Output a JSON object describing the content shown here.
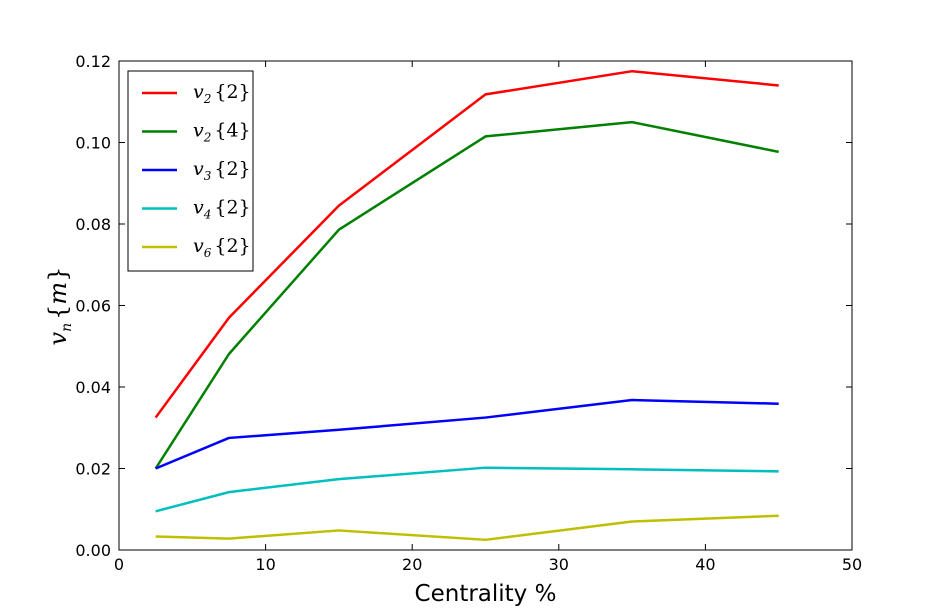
{
  "chart_data": {
    "type": "line",
    "title": "",
    "xlabel": "Centrality %",
    "ylabel": "v_n{m}",
    "xlim": [
      0,
      50
    ],
    "ylim": [
      0.0,
      0.12
    ],
    "xticks": [
      0,
      10,
      20,
      30,
      40,
      50
    ],
    "xtick_labels": [
      "0",
      "10",
      "20",
      "30",
      "40",
      "50"
    ],
    "yticks": [
      0.0,
      0.02,
      0.04,
      0.06,
      0.08,
      0.1,
      0.12
    ],
    "ytick_labels": [
      "0.00",
      "0.02",
      "0.04",
      "0.06",
      "0.08",
      "0.10",
      "0.12"
    ],
    "grid": false,
    "legend_position": "top-left",
    "x": [
      2.5,
      7.5,
      15,
      25,
      35,
      45
    ],
    "series": [
      {
        "name": "v2{2}",
        "base": "v",
        "sub": "2",
        "arg": "{2}",
        "color": "#ff0000",
        "values": [
          0.0325,
          0.057,
          0.0845,
          0.1118,
          0.1175,
          0.114
        ]
      },
      {
        "name": "v2{4}",
        "base": "v",
        "sub": "2",
        "arg": "{4}",
        "color": "#008000",
        "values": [
          0.02,
          0.0481,
          0.0786,
          0.1015,
          0.105,
          0.0977
        ]
      },
      {
        "name": "v3{2}",
        "base": "v",
        "sub": "3",
        "arg": "{2}",
        "color": "#0000ff",
        "values": [
          0.02,
          0.0275,
          0.0295,
          0.0325,
          0.0368,
          0.0359
        ]
      },
      {
        "name": "v4{2}",
        "base": "v",
        "sub": "4",
        "arg": "{2}",
        "color": "#00bfbf",
        "values": [
          0.0095,
          0.0142,
          0.0174,
          0.0202,
          0.0198,
          0.0193
        ]
      },
      {
        "name": "v6{2}",
        "base": "v",
        "sub": "6",
        "arg": "{2}",
        "color": "#bfbf00",
        "values": [
          0.0033,
          0.0028,
          0.0048,
          0.0025,
          0.007,
          0.0084
        ]
      }
    ]
  }
}
